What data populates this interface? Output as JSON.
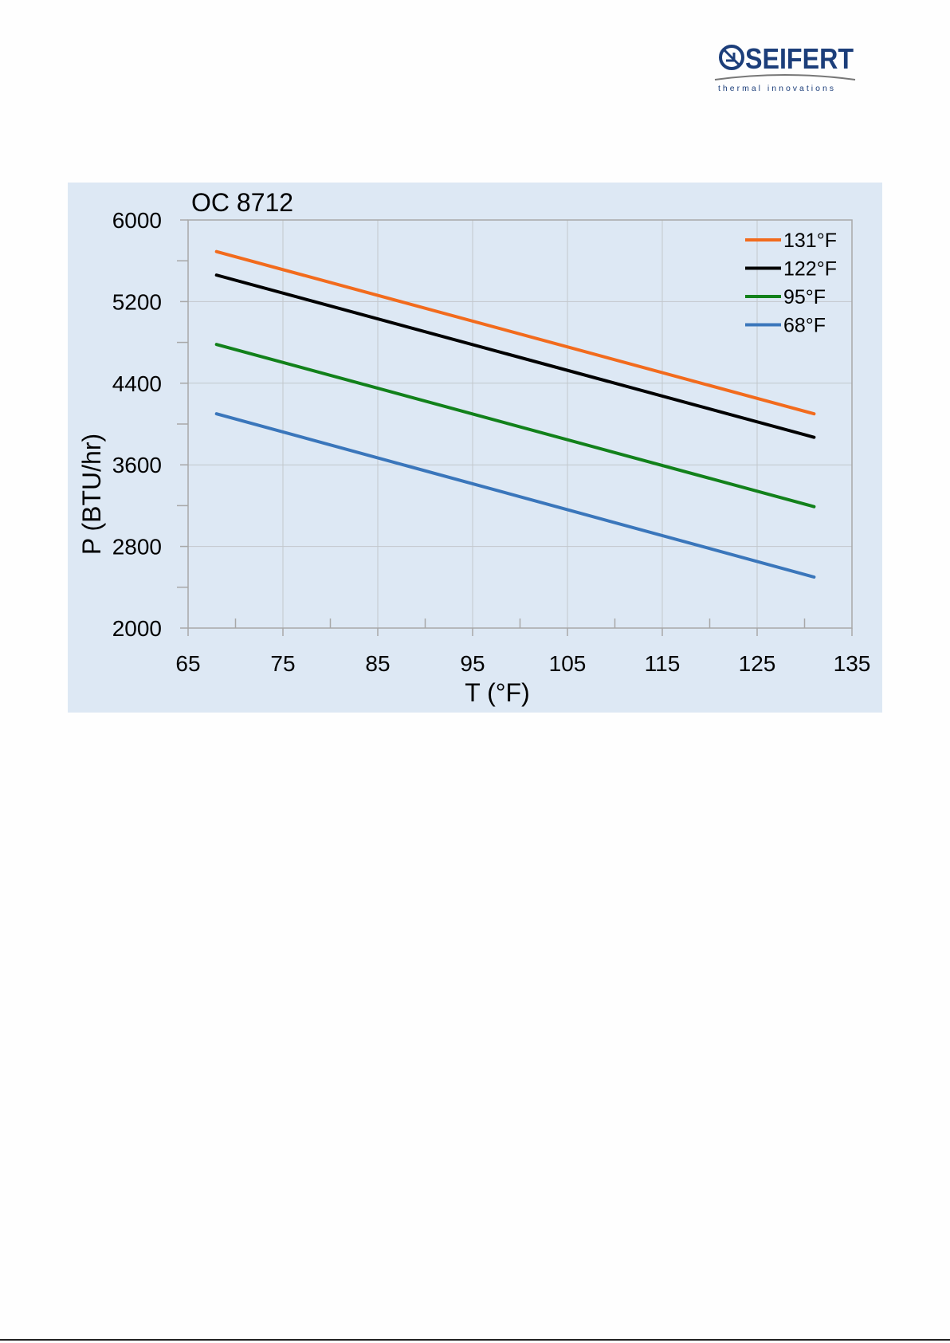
{
  "logo": {
    "brand": "SEIFERT",
    "tagline": "thermal innovations",
    "brand_color": "#1c3e7a"
  },
  "chart_data": {
    "type": "line",
    "title": "OC 8712",
    "xlabel": "T (°F)",
    "ylabel": "P (BTU/hr)",
    "xlim": [
      65,
      135
    ],
    "ylim": [
      2000,
      6000
    ],
    "xticks": [
      65,
      75,
      85,
      95,
      105,
      115,
      125,
      135
    ],
    "yticks": [
      2000,
      2800,
      3600,
      4400,
      5200,
      6000
    ],
    "x_minor_step": 5,
    "y_minor_step": 400,
    "grid": true,
    "legend_position": "top-right",
    "background": "#dde8f4",
    "series": [
      {
        "name": "131°F",
        "color": "#f26b1d",
        "x": [
          68,
          131
        ],
        "y": [
          5690,
          4100
        ]
      },
      {
        "name": "122°F",
        "color": "#000000",
        "x": [
          68,
          131
        ],
        "y": [
          5460,
          3870
        ]
      },
      {
        "name": "95°F",
        "color": "#12811b",
        "x": [
          68,
          131
        ],
        "y": [
          4780,
          3190
        ]
      },
      {
        "name": "68°F",
        "color": "#3a76bb",
        "x": [
          68,
          131
        ],
        "y": [
          4100,
          2500
        ]
      }
    ]
  }
}
